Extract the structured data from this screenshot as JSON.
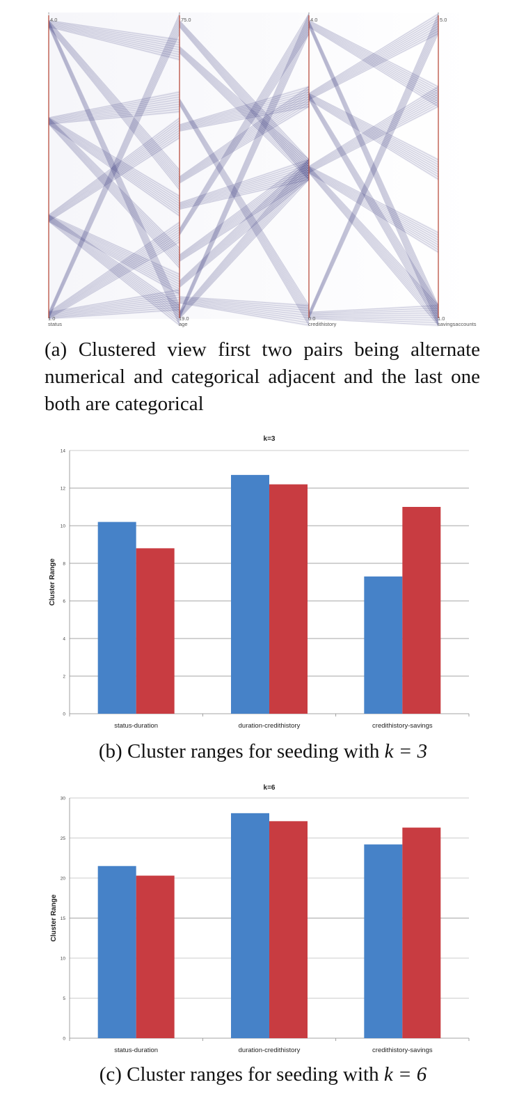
{
  "figure": {
    "caption_a": {
      "tag": "(a)",
      "text": "Clustered view first two pairs being alternate numerical and categorical adjacent and the last one both are categorical"
    },
    "caption_b": {
      "tag": "(b)",
      "text": "Cluster ranges for seeding with ",
      "k_expr": "k = 3"
    },
    "caption_c": {
      "tag": "(c)",
      "text": "Cluster ranges for seeding with ",
      "k_expr": "k = 6"
    }
  },
  "colors": {
    "series_1": "#4682c8",
    "series_2": "#c83c41",
    "lines": "#3c3f82",
    "axis": "#b44030"
  },
  "chart_data": [
    {
      "type": "parallel_coordinates",
      "axes": [
        {
          "name": "status",
          "min_label": "1.0",
          "max_label": "4.0"
        },
        {
          "name": "age",
          "min_label": "19.0",
          "max_label": "75.0"
        },
        {
          "name": "credithistory",
          "min_label": "0.0",
          "max_label": "4.0"
        },
        {
          "name": "savingsaccounts",
          "min_label": "1.0",
          "max_label": "5.0"
        }
      ],
      "clusters": [
        {
          "pair": "status-age",
          "bands": [
            [
              4.0,
              19.0
            ],
            [
              4.0,
              45.0
            ],
            [
              3.0,
              30.0
            ],
            [
              2.0,
              55.0
            ],
            [
              1.0,
              75.0
            ],
            [
              1.0,
              35.0
            ],
            [
              4.0,
              70.0
            ],
            [
              3.0,
              60.0
            ],
            [
              2.0,
              25.0
            ],
            [
              1.0,
              22.0
            ],
            [
              3.0,
              40.0
            ],
            [
              2.0,
              19.0
            ]
          ]
        },
        {
          "pair": "age-credithistory",
          "bands": [
            [
              75.0,
              2.0
            ],
            [
              19.0,
              4.0
            ],
            [
              45.0,
              3.0
            ],
            [
              30.0,
              2.0
            ],
            [
              60.0,
              0.0
            ],
            [
              35.0,
              4.0
            ],
            [
              25.0,
              2.0
            ],
            [
              55.0,
              3.0
            ],
            [
              22.0,
              0.0
            ],
            [
              70.0,
              2.0
            ],
            [
              40.0,
              2.0
            ],
            [
              19.0,
              2.0
            ]
          ]
        },
        {
          "pair": "credithistory-savingsaccounts",
          "bands": [
            [
              4.0,
              1.0
            ],
            [
              3.0,
              5.0
            ],
            [
              2.0,
              4.0
            ],
            [
              0.0,
              5.0
            ],
            [
              3.0,
              1.0
            ],
            [
              2.0,
              1.0
            ],
            [
              0.0,
              1.0
            ],
            [
              4.0,
              4.0
            ],
            [
              3.0,
              3.0
            ],
            [
              2.0,
              2.0
            ]
          ]
        }
      ]
    },
    {
      "type": "bar",
      "title": "k=3",
      "ylabel": "Cluster Range",
      "ylim": [
        0,
        14
      ],
      "yticks": [
        0,
        2,
        4,
        6,
        8,
        10,
        12,
        14
      ],
      "categories": [
        "status-duration",
        "duration-credithistory",
        "credithistory-savings"
      ],
      "series": [
        {
          "values": [
            10.2,
            12.7,
            7.3
          ]
        },
        {
          "values": [
            8.8,
            12.2,
            11.0
          ]
        }
      ],
      "grid": true
    },
    {
      "type": "bar",
      "title": "k=6",
      "ylabel": "Cluster Range",
      "ylim": [
        0,
        30
      ],
      "yticks": [
        0,
        5,
        10,
        15,
        20,
        25,
        30
      ],
      "categories": [
        "status-duration",
        "duration-credithistory",
        "credithistory-savings"
      ],
      "series": [
        {
          "values": [
            21.5,
            28.1,
            24.2
          ]
        },
        {
          "values": [
            20.3,
            27.1,
            26.3
          ]
        }
      ],
      "grid": true
    }
  ]
}
